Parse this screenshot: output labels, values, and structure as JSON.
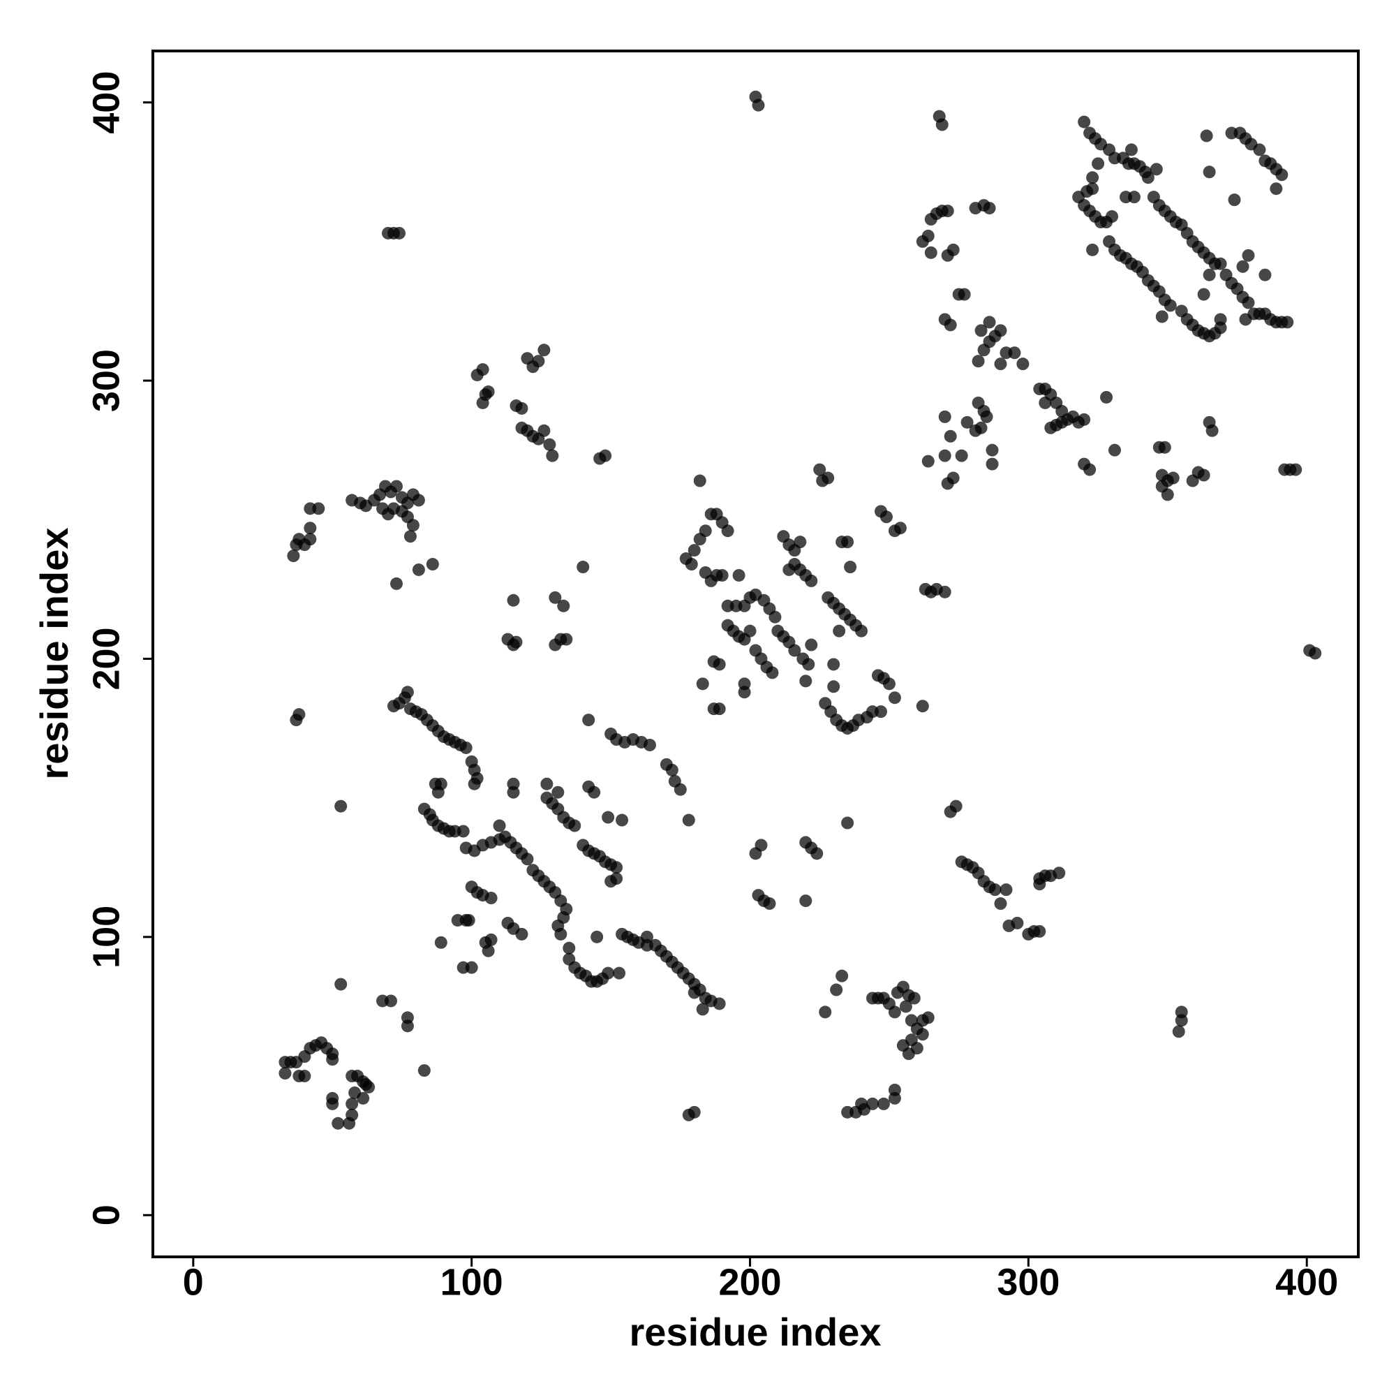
{
  "chart_data": {
    "type": "scatter",
    "x_label": "residue index",
    "y_label": "residue index",
    "xlim": [
      -14.5,
      418.5
    ],
    "ylim": [
      -15,
      418.5
    ],
    "xticks": [
      0,
      100,
      200,
      300,
      400
    ],
    "yticks": [
      0,
      100,
      200,
      300,
      400
    ],
    "color": "#000000",
    "alpha": 0.72,
    "x": [
      33,
      35,
      37,
      33,
      40,
      42,
      44,
      46,
      48,
      50,
      50,
      38,
      40,
      50,
      50,
      52,
      56,
      57,
      57,
      58,
      57,
      59,
      61,
      62,
      63,
      61,
      53,
      68,
      71,
      77,
      77,
      83,
      70,
      72,
      74,
      36,
      37,
      38,
      40,
      42,
      42,
      42,
      45,
      57,
      60,
      62,
      65,
      67,
      69,
      71,
      73,
      75,
      77,
      79,
      81,
      77,
      79,
      78,
      75,
      72,
      70,
      68,
      73,
      81,
      86,
      37,
      38,
      53,
      72,
      74,
      76,
      77,
      78,
      80,
      82,
      84,
      86,
      88,
      90,
      92,
      94,
      96,
      98,
      100,
      101,
      102,
      101,
      83,
      85,
      86,
      88,
      90,
      92,
      94,
      97,
      88,
      87,
      89,
      98,
      101,
      104,
      107,
      110,
      112,
      114,
      116,
      118,
      120,
      122,
      124,
      126,
      128,
      130,
      132,
      134,
      133,
      131,
      132,
      135,
      135,
      137,
      139,
      141,
      143,
      145,
      147,
      149,
      153,
      100,
      102,
      104,
      107,
      113,
      115,
      118,
      95,
      98,
      99,
      89,
      97,
      100,
      105,
      106,
      107,
      110,
      115,
      115,
      127,
      127,
      129,
      131,
      133,
      135,
      137,
      131,
      140,
      142,
      144,
      146,
      148,
      150,
      152,
      150,
      152,
      142,
      144,
      142,
      149,
      154,
      145,
      150,
      152,
      155,
      158,
      161,
      164,
      170,
      172,
      173,
      175,
      154,
      156,
      158,
      160,
      163,
      163,
      166,
      168,
      170,
      172,
      174,
      176,
      178,
      180,
      182,
      184,
      186,
      189,
      183,
      180,
      178,
      178,
      180,
      115,
      113,
      115,
      116,
      130,
      132,
      134,
      130,
      133,
      140,
      102,
      104,
      105,
      104,
      106,
      116,
      118,
      118,
      120,
      122,
      124,
      126,
      128,
      129,
      120,
      122,
      124,
      126,
      146,
      148,
      202,
      203,
      182,
      177,
      179,
      180,
      182,
      184,
      186,
      188,
      190,
      192,
      184,
      186,
      188,
      190,
      196,
      192,
      195,
      198,
      200,
      202,
      205,
      207,
      209,
      192,
      194,
      196,
      198,
      200,
      202,
      204,
      206,
      208,
      187,
      189,
      187,
      189,
      183,
      198,
      198,
      212,
      214,
      216,
      216,
      218,
      220,
      222,
      214,
      218,
      210,
      212,
      214,
      216,
      219,
      221,
      220,
      222,
      225,
      226,
      228,
      228,
      230,
      232,
      234,
      236,
      238,
      240,
      227,
      229,
      231,
      233,
      235,
      237,
      239,
      242,
      244,
      230,
      230,
      232,
      233,
      235,
      236,
      247,
      249,
      252,
      254,
      246,
      248,
      250,
      252,
      247,
      202,
      204,
      203,
      205,
      207,
      220,
      222,
      224,
      220,
      235,
      233,
      231,
      227,
      244,
      246,
      248,
      250,
      252,
      253,
      255,
      257,
      259,
      256,
      258,
      260,
      262,
      264,
      258,
      255,
      257,
      260,
      262,
      235,
      238,
      241,
      244,
      248,
      252,
      252,
      240,
      262,
      263,
      265,
      267,
      270,
      272,
      274,
      276,
      278,
      280,
      282,
      284,
      286,
      288,
      292,
      290,
      293,
      296,
      300,
      302,
      304,
      304,
      306,
      308,
      311,
      304,
      262,
      264,
      265,
      267,
      269,
      271,
      271,
      273,
      265,
      270,
      272,
      275,
      277,
      281,
      284,
      286,
      282,
      284,
      286,
      288,
      290,
      283,
      286,
      292,
      295,
      298,
      290,
      282,
      284,
      281,
      283,
      278,
      287,
      287,
      285,
      264,
      270,
      272,
      276,
      273,
      271,
      270,
      304,
      306,
      308,
      310,
      306,
      310,
      312,
      314,
      316,
      318,
      320,
      308,
      312,
      320,
      322,
      331,
      328,
      268,
      269,
      320,
      322,
      324,
      326,
      329,
      331,
      334,
      336,
      338,
      340,
      342,
      346,
      325,
      337,
      323,
      318,
      320,
      322,
      324,
      326,
      328,
      330,
      321,
      323,
      335,
      338,
      329,
      331,
      333,
      335,
      337,
      339,
      341,
      343,
      345,
      347,
      349,
      351,
      323,
      343,
      345,
      347,
      349,
      351,
      353,
      355,
      357,
      359,
      361,
      363,
      365,
      367,
      369,
      355,
      357,
      359,
      361,
      363,
      365,
      367,
      369,
      369,
      363,
      365,
      371,
      373,
      375,
      377,
      379,
      377,
      379,
      378,
      381,
      383,
      385,
      387,
      389,
      391,
      393,
      385,
      389,
      391,
      389,
      387,
      385,
      383,
      380,
      378,
      376,
      373,
      364,
      365,
      374,
      348,
      347,
      349,
      348,
      350,
      352,
      350,
      348,
      359,
      361,
      363,
      365,
      366,
      392,
      394,
      396,
      401,
      403,
      354,
      355,
      355
    ],
    "values": [
      55,
      55,
      55,
      51,
      57,
      60,
      61,
      62,
      60,
      58,
      56,
      50,
      50,
      42,
      40,
      33,
      33,
      36,
      40,
      44,
      50,
      50,
      48,
      47,
      46,
      42,
      83,
      77,
      77,
      71,
      68,
      52,
      353,
      353,
      353,
      237,
      241,
      243,
      241,
      243,
      247,
      254,
      254,
      257,
      256,
      255,
      257,
      259,
      262,
      260,
      262,
      258,
      256,
      259,
      257,
      251,
      248,
      244,
      253,
      254,
      252,
      254,
      227,
      232,
      234,
      178,
      180,
      147,
      183,
      184,
      186,
      188,
      182,
      181,
      180,
      178,
      176,
      174,
      172,
      171,
      170,
      169,
      168,
      163,
      160,
      157,
      155,
      146,
      144,
      142,
      140,
      139,
      138,
      138,
      138,
      152,
      155,
      155,
      132,
      131,
      133,
      134,
      135,
      136,
      134,
      132,
      130,
      128,
      124,
      122,
      120,
      118,
      116,
      113,
      110,
      107,
      104,
      101,
      96,
      92,
      89,
      87,
      86,
      84,
      84,
      85,
      87,
      87,
      118,
      116,
      115,
      114,
      105,
      103,
      101,
      106,
      106,
      106,
      98,
      89,
      89,
      98,
      95,
      99,
      140,
      155,
      152,
      155,
      150,
      148,
      146,
      143,
      141,
      140,
      152,
      133,
      131,
      130,
      129,
      127,
      126,
      125,
      120,
      121,
      154,
      152,
      178,
      143,
      142,
      100,
      173,
      171,
      170,
      171,
      170,
      169,
      162,
      160,
      156,
      153,
      101,
      100,
      99,
      98,
      100,
      97,
      97,
      95,
      93,
      91,
      89,
      87,
      85,
      83,
      81,
      78,
      77,
      76,
      74,
      80,
      142,
      36,
      37,
      221,
      207,
      205,
      206,
      205,
      207,
      207,
      222,
      219,
      233,
      302,
      304,
      295,
      292,
      296,
      291,
      290,
      283,
      282,
      280,
      279,
      282,
      277,
      273,
      308,
      305,
      307,
      311,
      272,
      273,
      402,
      399,
      264,
      236,
      234,
      239,
      243,
      246,
      252,
      252,
      249,
      246,
      231,
      228,
      230,
      230,
      230,
      219,
      219,
      219,
      222,
      223,
      221,
      218,
      215,
      212,
      210,
      208,
      207,
      210,
      203,
      200,
      197,
      195,
      199,
      198,
      182,
      182,
      191,
      188,
      191,
      244,
      241,
      239,
      234,
      232,
      230,
      228,
      232,
      242,
      210,
      208,
      206,
      203,
      200,
      198,
      192,
      205,
      268,
      264,
      265,
      222,
      220,
      218,
      216,
      214,
      212,
      210,
      184,
      181,
      178,
      176,
      175,
      176,
      178,
      179,
      181,
      190,
      198,
      210,
      242,
      242,
      233,
      253,
      251,
      246,
      247,
      194,
      193,
      191,
      186,
      181,
      130,
      133,
      115,
      113,
      112,
      134,
      132,
      130,
      113,
      141,
      86,
      81,
      73,
      78,
      78,
      78,
      76,
      73,
      80,
      82,
      79,
      78,
      75,
      70,
      67,
      70,
      71,
      63,
      61,
      58,
      60,
      65,
      37,
      37,
      38,
      40,
      40,
      42,
      45,
      40,
      183,
      225,
      224,
      225,
      224,
      145,
      147,
      127,
      126,
      125,
      123,
      120,
      118,
      117,
      117,
      112,
      104,
      105,
      101,
      102,
      102,
      121,
      122,
      122,
      123,
      119,
      350,
      352,
      358,
      360,
      361,
      361,
      345,
      347,
      346,
      322,
      320,
      331,
      331,
      362,
      363,
      362,
      307,
      311,
      314,
      316,
      318,
      318,
      321,
      310,
      310,
      306,
      306,
      292,
      289,
      282,
      283,
      285,
      275,
      270,
      287,
      271,
      273,
      280,
      273,
      265,
      263,
      287,
      297,
      297,
      295,
      292,
      292,
      284,
      285,
      286,
      287,
      285,
      286,
      283,
      289,
      270,
      268,
      275,
      294,
      395,
      392,
      393,
      389,
      387,
      385,
      383,
      380,
      380,
      378,
      378,
      377,
      375,
      376,
      378,
      383,
      373,
      366,
      363,
      361,
      359,
      357,
      357,
      359,
      368,
      369,
      366,
      366,
      350,
      347,
      345,
      344,
      342,
      341,
      339,
      336,
      334,
      332,
      329,
      327,
      347,
      373,
      366,
      363,
      361,
      359,
      357,
      356,
      353,
      350,
      348,
      346,
      344,
      342,
      342,
      325,
      322,
      320,
      318,
      317,
      316,
      317,
      319,
      322,
      331,
      338,
      338,
      335,
      333,
      330,
      328,
      341,
      345,
      322,
      324,
      324,
      324,
      322,
      321,
      321,
      321,
      338,
      369,
      374,
      376,
      378,
      379,
      383,
      385,
      387,
      389,
      389,
      388,
      375,
      365,
      323,
      276,
      276,
      266,
      264,
      265,
      259,
      262,
      264,
      267,
      266,
      285,
      282,
      268,
      268,
      268,
      203,
      202,
      66,
      70,
      73
    ]
  }
}
